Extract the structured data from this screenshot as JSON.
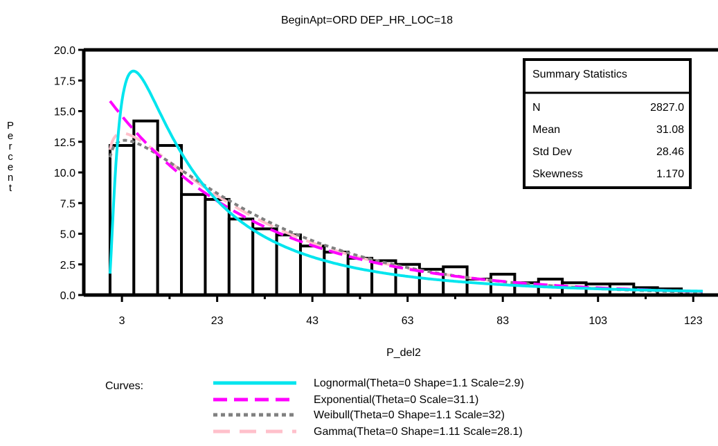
{
  "chart_data": {
    "type": "bar",
    "title": "BeginApt=ORD DEP_HR_LOC=18",
    "xlabel": "P_del2",
    "ylabel": "Percent",
    "xlim": [
      0,
      125
    ],
    "ylim": [
      0,
      20
    ],
    "x_ticks": [
      3,
      23,
      43,
      63,
      83,
      103,
      123
    ],
    "y_ticks": [
      "0.0",
      "2.5",
      "5.0",
      "7.5",
      "10.0",
      "12.5",
      "15.0",
      "17.5",
      "20.0"
    ],
    "bin_width": 5,
    "histogram": {
      "bin_midpoints": [
        3,
        8,
        13,
        18,
        23,
        28,
        33,
        38,
        43,
        48,
        53,
        58,
        63,
        68,
        73,
        78,
        83,
        88,
        93,
        98,
        103,
        108,
        113,
        118
      ],
      "percent": [
        12.2,
        14.2,
        12.2,
        8.2,
        7.8,
        6.2,
        5.4,
        4.9,
        4.0,
        3.5,
        3.0,
        2.8,
        2.5,
        2.1,
        2.3,
        1.3,
        1.7,
        1.0,
        1.3,
        1.0,
        0.9,
        0.9,
        0.6,
        0.5
      ]
    },
    "curves_label": "Curves:",
    "series": [
      {
        "name": "Lognormal(Theta=0 Shape=1.1 Scale=2.9)",
        "dist": "lognormal",
        "params": {
          "theta": 0,
          "shape": 1.1,
          "scale": 2.9
        },
        "color": "#00e5ee",
        "style": "solid"
      },
      {
        "name": "Exponential(Theta=0 Scale=31.1)",
        "dist": "exponential",
        "params": {
          "theta": 0,
          "scale": 31.1
        },
        "color": "#ff00ff",
        "style": "dashed"
      },
      {
        "name": "Weibull(Theta=0 Shape=1.1 Scale=32)",
        "dist": "weibull",
        "params": {
          "theta": 0,
          "shape": 1.1,
          "scale": 32
        },
        "color": "#808080",
        "style": "dotted"
      },
      {
        "name": "Gamma(Theta=0 Shape=1.11 Scale=28.1)",
        "dist": "gamma",
        "params": {
          "theta": 0,
          "shape": 1.11,
          "scale": 28.1
        },
        "color": "#ffc0cb",
        "style": "longdash"
      }
    ],
    "summary": {
      "title": "Summary Statistics",
      "rows": [
        {
          "label": "N",
          "value": "2827.0"
        },
        {
          "label": "Mean",
          "value": "31.08"
        },
        {
          "label": "Std Dev",
          "value": "28.46"
        },
        {
          "label": "Skewness",
          "value": "1.170"
        }
      ]
    }
  }
}
